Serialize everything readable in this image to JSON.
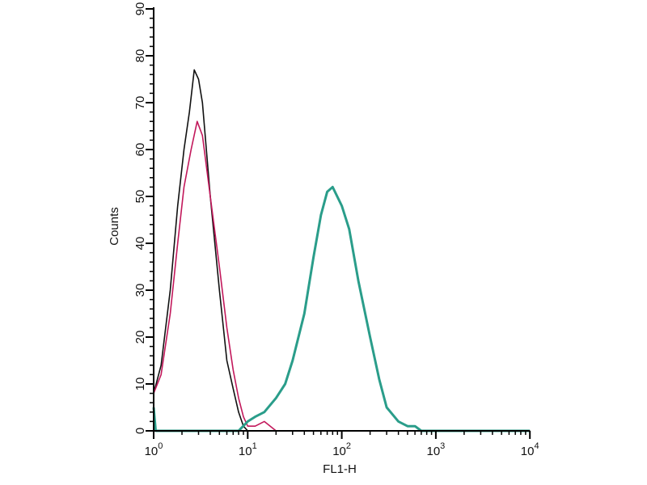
{
  "chart_data": {
    "type": "line",
    "title": "",
    "xlabel": "FL1-H",
    "ylabel": "Counts",
    "xscale": "log",
    "xlim": [
      1,
      10000
    ],
    "ylim": [
      0,
      90
    ],
    "grid": false,
    "x_ticks": [
      {
        "base": "10",
        "exp": "0"
      },
      {
        "base": "10",
        "exp": "1"
      },
      {
        "base": "10",
        "exp": "2"
      },
      {
        "base": "10",
        "exp": "3"
      },
      {
        "base": "10",
        "exp": "4"
      }
    ],
    "y_ticks": [
      "0",
      "10",
      "20",
      "30",
      "40",
      "50",
      "60",
      "70",
      "80",
      "90"
    ],
    "series": [
      {
        "color": "#111111",
        "x": [
          1,
          1.2,
          1.5,
          1.8,
          2.1,
          2.4,
          2.7,
          3.0,
          3.3,
          4,
          5,
          6,
          7,
          8,
          9,
          10,
          10000
        ],
        "values": [
          8,
          14,
          30,
          48,
          60,
          68,
          77,
          75,
          70,
          50,
          30,
          15,
          9,
          4,
          1,
          0,
          0
        ]
      },
      {
        "color": "#c2185b",
        "x": [
          1,
          1.2,
          1.5,
          1.8,
          2.1,
          2.5,
          2.9,
          3.3,
          4,
          5,
          6,
          7,
          8,
          9,
          10,
          12,
          15,
          20,
          10000
        ],
        "values": [
          8,
          12,
          25,
          40,
          52,
          60,
          66,
          63,
          50,
          35,
          22,
          13,
          7,
          3,
          1,
          1,
          2,
          0,
          0
        ]
      },
      {
        "color": "#2a9d8a",
        "x": [
          1,
          1.05,
          8,
          10,
          12,
          15,
          20,
          25,
          30,
          40,
          50,
          60,
          70,
          80,
          100,
          120,
          150,
          200,
          250,
          300,
          400,
          500,
          600,
          700,
          10000
        ],
        "values": [
          5,
          0,
          0,
          2,
          3,
          4,
          7,
          10,
          15,
          25,
          37,
          46,
          51,
          52,
          48,
          43,
          32,
          20,
          11,
          5,
          2,
          1,
          1,
          0,
          0
        ]
      }
    ]
  }
}
